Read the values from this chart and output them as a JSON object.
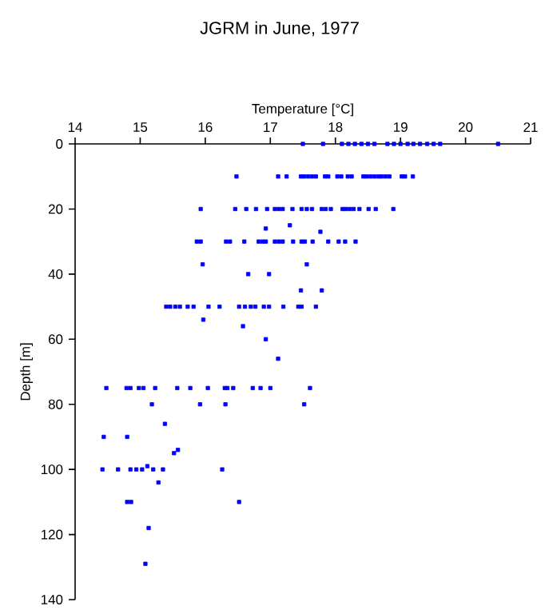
{
  "chart_data": {
    "type": "scatter",
    "title": "JGRM in June, 1977",
    "xlabel": "Temperature [°C]",
    "ylabel": "Depth [m]",
    "xlim": [
      14,
      21
    ],
    "ylim": [
      140,
      0
    ],
    "xticks": [
      14,
      15,
      16,
      17,
      18,
      19,
      20,
      21
    ],
    "yticks": [
      0,
      20,
      40,
      60,
      80,
      100,
      120,
      140
    ],
    "marker": "square",
    "series": [
      {
        "color": "#0000ff",
        "x": [
          17.5,
          17.81,
          18.1,
          18.2,
          18.3,
          18.4,
          18.5,
          18.6,
          18.8,
          18.9,
          19.0,
          19.11,
          19.2,
          19.3,
          19.41,
          19.51,
          19.61,
          20.5,
          16.48,
          17.12,
          17.25,
          17.47,
          17.52,
          17.58,
          17.64,
          17.7,
          17.84,
          17.89,
          18.03,
          18.09,
          18.19,
          18.25,
          18.43,
          18.48,
          18.54,
          18.6,
          18.66,
          18.71,
          18.77,
          18.83,
          19.02,
          19.07,
          19.19,
          15.93,
          16.46,
          16.63,
          16.78,
          16.95,
          17.07,
          17.13,
          17.19,
          17.34,
          17.48,
          17.56,
          17.64,
          17.79,
          17.85,
          17.93,
          18.11,
          18.16,
          18.22,
          18.28,
          18.37,
          18.51,
          18.62,
          18.89,
          16.93,
          17.3,
          17.77,
          15.87,
          15.93,
          16.32,
          16.38,
          16.6,
          16.82,
          16.88,
          16.93,
          17.07,
          17.13,
          17.19,
          17.35,
          17.48,
          17.53,
          17.65,
          17.89,
          18.05,
          18.15,
          18.31,
          15.96,
          17.56,
          16.66,
          16.98,
          17.47,
          17.79,
          15.4,
          15.46,
          15.54,
          15.61,
          15.73,
          15.82,
          16.05,
          16.22,
          16.52,
          16.61,
          16.7,
          16.77,
          16.9,
          16.98,
          17.2,
          17.43,
          17.48,
          17.7,
          15.97,
          16.58,
          16.93,
          17.12,
          14.48,
          14.79,
          14.85,
          14.98,
          15.05,
          15.23,
          15.57,
          15.77,
          16.04,
          16.3,
          16.34,
          16.43,
          16.73,
          16.85,
          17.0,
          17.61,
          15.18,
          15.92,
          16.31,
          17.52,
          15.38,
          14.44,
          14.8,
          15.58,
          15.52,
          14.42,
          14.66,
          14.85,
          14.94,
          15.03,
          15.11,
          15.2,
          15.35,
          16.26,
          15.28,
          14.8,
          14.86,
          16.52,
          15.13,
          15.08
        ],
        "values": [
          0,
          0,
          0,
          0,
          0,
          0,
          0,
          0,
          0,
          0,
          0,
          0,
          0,
          0,
          0,
          0,
          0,
          0,
          10,
          10,
          10,
          10,
          10,
          10,
          10,
          10,
          10,
          10,
          10,
          10,
          10,
          10,
          10,
          10,
          10,
          10,
          10,
          10,
          10,
          10,
          10,
          10,
          10,
          20,
          20,
          20,
          20,
          20,
          20,
          20,
          20,
          20,
          20,
          20,
          20,
          20,
          20,
          20,
          20,
          20,
          20,
          20,
          20,
          20,
          20,
          20,
          26,
          25,
          27,
          30,
          30,
          30,
          30,
          30,
          30,
          30,
          30,
          30,
          30,
          30,
          30,
          30,
          30,
          30,
          30,
          30,
          30,
          30,
          37,
          37,
          40,
          40,
          45,
          45,
          50,
          50,
          50,
          50,
          50,
          50,
          50,
          50,
          50,
          50,
          50,
          50,
          50,
          50,
          50,
          50,
          50,
          50,
          54,
          56,
          60,
          66,
          75,
          75,
          75,
          75,
          75,
          75,
          75,
          75,
          75,
          75,
          75,
          75,
          75,
          75,
          75,
          75,
          80,
          80,
          80,
          80,
          86,
          90,
          90,
          94,
          95,
          100,
          100,
          100,
          100,
          100,
          99,
          100,
          100,
          100,
          104,
          110,
          110,
          110,
          118,
          129
        ]
      }
    ]
  }
}
